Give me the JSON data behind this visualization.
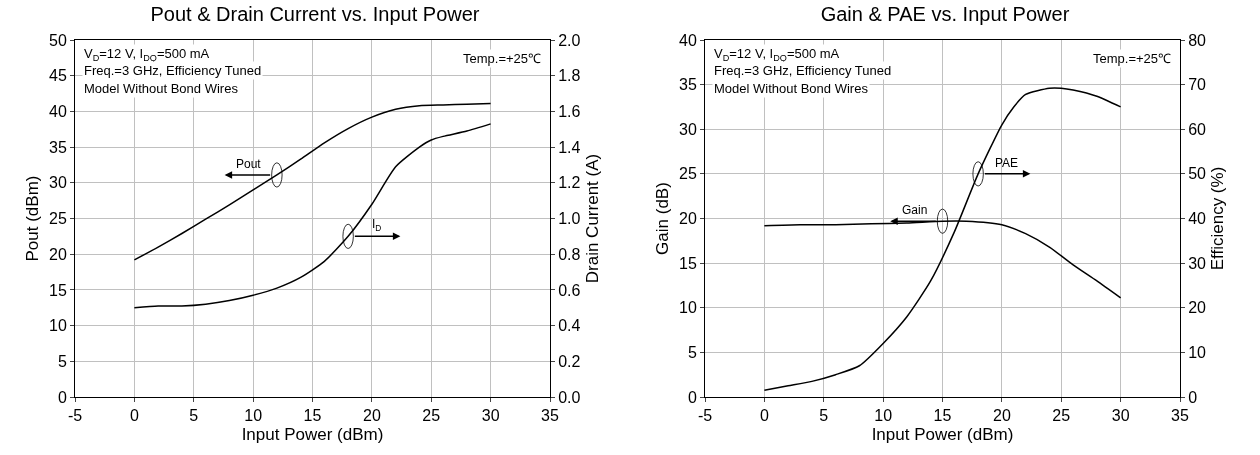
{
  "chart_data": [
    {
      "type": "line",
      "title": "Pout & Drain Current vs. Input Power",
      "xlabel": "Input Power (dBm)",
      "ylabel": "Pout (dBm)",
      "y2label": "Drain Current (A)",
      "annotations": [
        "V$_{D}$=12 V, I$_{DQ}$=500 mA",
        "Freq.=3 GHz, Efficiency Tuned",
        "Model Without Bond Wires",
        "Temp.=+25℃"
      ],
      "series": [
        {
          "name": "Pout",
          "color": "#000000",
          "x": [
            0,
            2,
            4,
            6,
            8,
            10,
            12,
            14,
            16,
            18,
            20,
            22,
            24,
            26,
            28,
            30
          ],
          "values": [
            19.2,
            21,
            22.9,
            24.9,
            26.9,
            29,
            31.1,
            33.3,
            35.6,
            37.6,
            39.2,
            40.3,
            40.8,
            40.9,
            41,
            41.1
          ]
        },
        {
          "name": "I$_{D}$",
          "color": "#000000",
          "axis": "y2",
          "x": [
            0,
            2,
            4,
            6,
            8,
            10,
            12,
            14,
            16,
            18,
            20,
            22,
            24,
            25,
            26,
            28,
            30
          ],
          "values": [
            0.5,
            0.51,
            0.51,
            0.52,
            0.54,
            0.57,
            0.61,
            0.67,
            0.76,
            0.9,
            1.08,
            1.29,
            1.4,
            1.44,
            1.46,
            1.49,
            1.53
          ]
        }
      ],
      "xlim": [
        -5,
        35
      ],
      "xticks": [
        -5,
        0,
        5,
        10,
        15,
        20,
        25,
        30,
        35
      ],
      "ylim": [
        0,
        50
      ],
      "yticks": [
        0,
        5,
        10,
        15,
        20,
        25,
        30,
        35,
        40,
        45,
        50
      ],
      "y2lim": [
        0,
        2
      ],
      "y2ticks": [
        {
          "value": 0,
          "label": "0.0"
        },
        {
          "value": 0.2,
          "label": "0.2"
        },
        {
          "value": 0.4,
          "label": "0.4"
        },
        {
          "value": 0.6,
          "label": "0.6"
        },
        {
          "value": 0.8,
          "label": "0.8"
        },
        {
          "value": 1,
          "label": "1.0"
        },
        {
          "value": 1.2,
          "label": "1.2"
        },
        {
          "value": 1.4,
          "label": "1.4"
        },
        {
          "value": 1.6,
          "label": "1.6"
        },
        {
          "value": 1.8,
          "label": "1.8"
        },
        {
          "value": 2,
          "label": "2.0"
        }
      ],
      "grid": true,
      "legend": false,
      "marker": "none",
      "line_style": "solid"
    },
    {
      "type": "line",
      "title": "Gain & PAE vs. Input Power",
      "xlabel": "Input Power (dBm)",
      "ylabel": "Gain (dB)",
      "y2label": "Efficiency (%)",
      "annotations": [
        "V$_{D}$=12 V, I$_{DQ}$=500 mA",
        "Freq.=3 GHz, Efficiency Tuned",
        "Model Without Bond Wires",
        "Temp.=+25℃"
      ],
      "series": [
        {
          "name": "Gain",
          "color": "#000000",
          "x": [
            0,
            3,
            6,
            9,
            12,
            15,
            17,
            20,
            22,
            24,
            26,
            28,
            30
          ],
          "values": [
            19.2,
            19.3,
            19.3,
            19.4,
            19.5,
            19.7,
            19.7,
            19.3,
            18.3,
            16.8,
            14.8,
            13,
            11.1
          ]
        },
        {
          "name": "PAE",
          "color": "#000000",
          "axis": "y2",
          "x": [
            0,
            2,
            4,
            6,
            8,
            10,
            12,
            14,
            16,
            18,
            20,
            21,
            22,
            24,
            25,
            26,
            28,
            30
          ],
          "values": [
            1.5,
            2.5,
            3.5,
            5,
            7,
            12,
            18,
            26,
            37,
            50,
            61,
            65,
            67.8,
            69.2,
            69.2,
            68.8,
            67.4,
            65
          ]
        }
      ],
      "xlim": [
        -5,
        35
      ],
      "xticks": [
        -5,
        0,
        5,
        10,
        15,
        20,
        25,
        30,
        35
      ],
      "ylim": [
        0,
        40
      ],
      "yticks": [
        0,
        5,
        10,
        15,
        20,
        25,
        30,
        35,
        40
      ],
      "y2lim": [
        0,
        80
      ],
      "y2ticks": [
        0,
        10,
        20,
        30,
        40,
        50,
        60,
        70,
        80
      ],
      "grid": true,
      "legend": false,
      "marker": "none",
      "line_style": "solid"
    }
  ]
}
